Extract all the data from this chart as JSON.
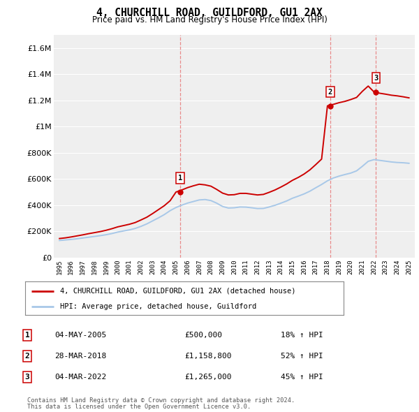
{
  "title": "4, CHURCHILL ROAD, GUILDFORD, GU1 2AX",
  "subtitle": "Price paid vs. HM Land Registry's House Price Index (HPI)",
  "legend_label_red": "4, CHURCHILL ROAD, GUILDFORD, GU1 2AX (detached house)",
  "legend_label_blue": "HPI: Average price, detached house, Guildford",
  "transactions": [
    {
      "num": 1,
      "date": "04-MAY-2005",
      "price": 500000,
      "hpi_pct": "18% ↑ HPI",
      "year": 2005.35
    },
    {
      "num": 2,
      "date": "28-MAR-2018",
      "price": 1158800,
      "hpi_pct": "52% ↑ HPI",
      "year": 2018.24
    },
    {
      "num": 3,
      "date": "04-MAR-2022",
      "price": 1265000,
      "hpi_pct": "45% ↑ HPI",
      "year": 2022.17
    }
  ],
  "footer_line1": "Contains HM Land Registry data © Crown copyright and database right 2024.",
  "footer_line2": "This data is licensed under the Open Government Licence v3.0.",
  "ylim": [
    0,
    1700000
  ],
  "yticks": [
    0,
    200000,
    400000,
    600000,
    800000,
    1000000,
    1200000,
    1400000,
    1600000
  ],
  "xlim_start": 1994.5,
  "xlim_end": 2025.5,
  "background_color": "#ffffff",
  "plot_background": "#efefef",
  "grid_color": "#ffffff",
  "red_color": "#cc0000",
  "blue_color": "#a8c8e8",
  "vline_color": "#e88080",
  "hpi_years": [
    1995,
    1995.5,
    1996,
    1996.5,
    1997,
    1997.5,
    1998,
    1998.5,
    1999,
    1999.5,
    2000,
    2000.5,
    2001,
    2001.5,
    2002,
    2002.5,
    2003,
    2003.5,
    2004,
    2004.5,
    2005,
    2005.5,
    2006,
    2006.5,
    2007,
    2007.5,
    2008,
    2008.5,
    2009,
    2009.5,
    2010,
    2010.5,
    2011,
    2011.5,
    2012,
    2012.5,
    2013,
    2013.5,
    2014,
    2014.5,
    2015,
    2015.5,
    2016,
    2016.5,
    2017,
    2017.5,
    2018,
    2018.5,
    2019,
    2019.5,
    2020,
    2020.5,
    2021,
    2021.5,
    2022,
    2022.5,
    2023,
    2023.5,
    2024,
    2024.5,
    2025
  ],
  "hpi_values": [
    130000,
    134000,
    138000,
    143000,
    149000,
    155000,
    161000,
    167000,
    174000,
    183000,
    194000,
    203000,
    211000,
    222000,
    238000,
    257000,
    280000,
    303000,
    328000,
    358000,
    382000,
    400000,
    416000,
    428000,
    440000,
    443000,
    435000,
    415000,
    390000,
    378000,
    380000,
    386000,
    385000,
    380000,
    374000,
    375000,
    386000,
    399000,
    415000,
    432000,
    453000,
    469000,
    486000,
    507000,
    533000,
    558000,
    586000,
    607000,
    622000,
    634000,
    645000,
    662000,
    697000,
    735000,
    748000,
    742000,
    736000,
    730000,
    726000,
    724000,
    720000
  ],
  "price_years": [
    1995,
    1995.5,
    1996,
    1996.5,
    1997,
    1997.5,
    1998,
    1998.5,
    1999,
    1999.5,
    2000,
    2000.5,
    2001,
    2001.5,
    2002,
    2002.5,
    2003,
    2003.5,
    2004,
    2004.5,
    2005,
    2005.5,
    2006,
    2006.5,
    2007,
    2007.5,
    2008,
    2008.5,
    2009,
    2009.5,
    2010,
    2010.5,
    2011,
    2011.5,
    2012,
    2012.5,
    2013,
    2013.5,
    2014,
    2014.5,
    2015,
    2015.5,
    2016,
    2016.5,
    2017,
    2017.5,
    2018,
    2018.5,
    2019,
    2019.5,
    2020,
    2020.5,
    2021,
    2021.5,
    2022,
    2022.5,
    2023,
    2023.5,
    2024,
    2024.5,
    2025
  ],
  "price_values": [
    145000,
    150000,
    157000,
    165000,
    173000,
    182000,
    190000,
    198000,
    208000,
    220000,
    234000,
    244000,
    254000,
    267000,
    287000,
    308000,
    336000,
    366000,
    396000,
    434000,
    500000,
    516000,
    534000,
    548000,
    560000,
    555000,
    545000,
    520000,
    492000,
    478000,
    480000,
    490000,
    490000,
    484000,
    478000,
    482000,
    498000,
    516000,
    538000,
    562000,
    590000,
    612000,
    638000,
    670000,
    710000,
    752000,
    1158800,
    1170000,
    1183000,
    1193000,
    1207000,
    1223000,
    1270000,
    1310000,
    1265000,
    1255000,
    1248000,
    1240000,
    1235000,
    1228000,
    1220000
  ]
}
